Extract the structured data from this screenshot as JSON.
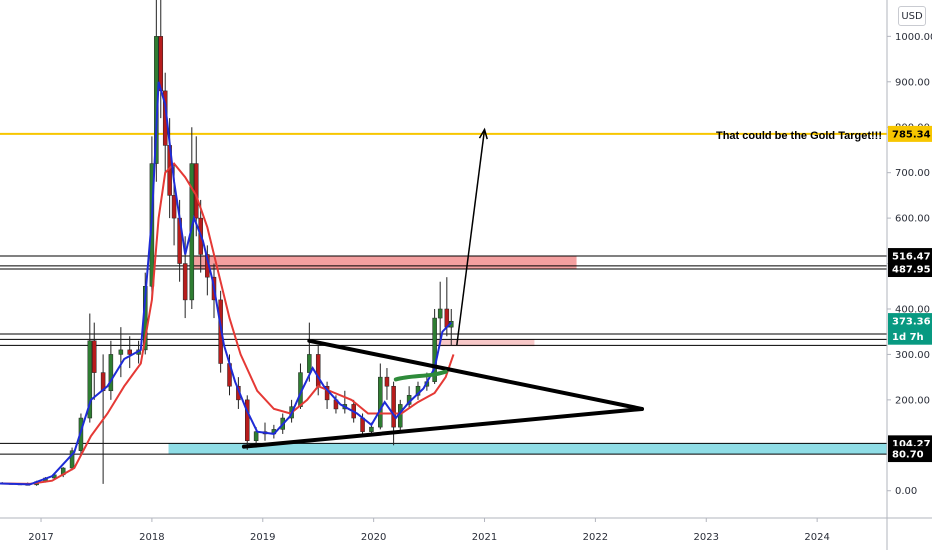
{
  "currency_button": "USD",
  "annotation": "That could be the Gold Target!!!",
  "chart_data": {
    "type": "candlestick",
    "ylim": [
      -60,
      1080
    ],
    "xlim": [
      2016.63,
      2024.63
    ],
    "y_ticks": [
      {
        "v": 0,
        "label": "0.00"
      },
      {
        "v": 200,
        "label": "200.00"
      },
      {
        "v": 300,
        "label": "300.00"
      },
      {
        "v": 400,
        "label": "400.00"
      },
      {
        "v": 500,
        "label": "500.00"
      },
      {
        "v": 600,
        "label": "600.00"
      },
      {
        "v": 700,
        "label": "700.00"
      },
      {
        "v": 800,
        "label": "800.00"
      },
      {
        "v": 900,
        "label": "900.00"
      },
      {
        "v": 1000,
        "label": "1000.00"
      }
    ],
    "x_ticks": [
      {
        "v": 2017,
        "label": "2017"
      },
      {
        "v": 2018,
        "label": "2018"
      },
      {
        "v": 2019,
        "label": "2019"
      },
      {
        "v": 2020,
        "label": "2020"
      },
      {
        "v": 2021,
        "label": "2021"
      },
      {
        "v": 2022,
        "label": "2022"
      },
      {
        "v": 2023,
        "label": "2023"
      },
      {
        "v": 2024,
        "label": "2024"
      }
    ],
    "price_tags": [
      {
        "v": 785.34,
        "label": "785.34",
        "bg": "#f7c600",
        "fg": "#000000"
      },
      {
        "v": 516.47,
        "label": "516.47",
        "bg": "#000000",
        "fg": "#ffffff"
      },
      {
        "v": 487.95,
        "label": "487.95",
        "bg": "#000000",
        "fg": "#ffffff"
      },
      {
        "v": 373.36,
        "label": "373.36",
        "bg": "#089981",
        "fg": "#ffffff"
      },
      {
        "v": 339,
        "label": "1d 7h",
        "bg": "#089981",
        "fg": "#ffffff"
      },
      {
        "v": 104.27,
        "label": "104.27",
        "bg": "#000000",
        "fg": "#ffffff"
      },
      {
        "v": 80.7,
        "label": "80.70",
        "bg": "#000000",
        "fg": "#ffffff"
      }
    ],
    "horizontal_levels": [
      {
        "v": 785.34,
        "color": "#f7c600",
        "width": 2
      },
      {
        "v": 516.47,
        "color": "#000000",
        "width": 1
      },
      {
        "v": 495,
        "color": "#000000",
        "width": 1
      },
      {
        "v": 487.95,
        "color": "#000000",
        "width": 1
      },
      {
        "v": 345,
        "color": "#000000",
        "width": 1
      },
      {
        "v": 333,
        "color": "#000000",
        "width": 1
      },
      {
        "v": 320,
        "color": "#000000",
        "width": 1
      },
      {
        "v": 104.27,
        "color": "#000000",
        "width": 1
      },
      {
        "v": 80.7,
        "color": "#000000",
        "width": 1
      }
    ],
    "zones": [
      {
        "x1": 2018.38,
        "x2": 2021.83,
        "y1": 487.95,
        "y2": 516.47,
        "color": "#f4a0a0"
      },
      {
        "x1": 2020.55,
        "x2": 2021.45,
        "y1": 318,
        "y2": 333,
        "color": "#f8c8c8"
      },
      {
        "x1": 2018.15,
        "x2": 2024.63,
        "y1": 80.7,
        "y2": 104.27,
        "color": "#8fdde6"
      }
    ],
    "trendlines": [
      {
        "x1": 2019.42,
        "y1": 330,
        "x2": 2022.42,
        "y2": 180,
        "color": "#000000",
        "width": 4
      },
      {
        "x1": 2018.83,
        "y1": 97,
        "x2": 2022.42,
        "y2": 180,
        "color": "#000000",
        "width": 4
      }
    ],
    "arrow": {
      "x1": 2020.75,
      "y1": 320,
      "x2": 2021.0,
      "y2": 795,
      "color": "#000000"
    },
    "green_arc": [
      [
        2020.2,
        245
      ],
      [
        2020.35,
        255
      ],
      [
        2020.5,
        250
      ],
      [
        2020.65,
        262
      ]
    ],
    "candles": [
      [
        2016.65,
        17,
        19,
        15,
        16
      ],
      [
        2016.73,
        16,
        17,
        14,
        15
      ],
      [
        2016.81,
        15,
        17,
        13,
        14
      ],
      [
        2016.88,
        14,
        18,
        12,
        13
      ],
      [
        2016.96,
        13,
        22,
        11,
        20
      ],
      [
        2017.04,
        20,
        30,
        18,
        28
      ],
      [
        2017.12,
        28,
        38,
        24,
        35
      ],
      [
        2017.2,
        35,
        52,
        30,
        50
      ],
      [
        2017.28,
        50,
        95,
        45,
        88
      ],
      [
        2017.36,
        88,
        170,
        80,
        160
      ],
      [
        2017.44,
        160,
        390,
        150,
        330
      ],
      [
        2017.48,
        330,
        370,
        200,
        260
      ],
      [
        2017.56,
        260,
        300,
        15,
        220
      ],
      [
        2017.63,
        220,
        330,
        200,
        300
      ],
      [
        2017.72,
        300,
        360,
        250,
        310
      ],
      [
        2017.8,
        310,
        340,
        270,
        300
      ],
      [
        2017.88,
        300,
        330,
        280,
        310
      ],
      [
        2017.94,
        310,
        480,
        300,
        450
      ],
      [
        2018.0,
        450,
        780,
        420,
        720
      ],
      [
        2018.04,
        720,
        1080,
        680,
        1000
      ],
      [
        2018.08,
        1000,
        1080,
        820,
        880
      ],
      [
        2018.12,
        880,
        920,
        700,
        760
      ],
      [
        2018.16,
        760,
        820,
        600,
        650
      ],
      [
        2018.2,
        650,
        720,
        540,
        600
      ],
      [
        2018.25,
        600,
        640,
        460,
        500
      ],
      [
        2018.3,
        500,
        560,
        380,
        420
      ],
      [
        2018.36,
        420,
        800,
        400,
        720
      ],
      [
        2018.4,
        720,
        780,
        560,
        600
      ],
      [
        2018.44,
        600,
        640,
        480,
        520
      ],
      [
        2018.5,
        520,
        540,
        430,
        470
      ],
      [
        2018.56,
        470,
        500,
        380,
        420
      ],
      [
        2018.62,
        420,
        440,
        260,
        280
      ],
      [
        2018.7,
        280,
        300,
        210,
        230
      ],
      [
        2018.78,
        230,
        250,
        180,
        200
      ],
      [
        2018.86,
        200,
        210,
        90,
        110
      ],
      [
        2018.94,
        110,
        140,
        95,
        130
      ],
      [
        2019.02,
        130,
        150,
        110,
        125
      ],
      [
        2019.1,
        125,
        145,
        115,
        135
      ],
      [
        2019.18,
        135,
        170,
        125,
        160
      ],
      [
        2019.26,
        160,
        200,
        150,
        185
      ],
      [
        2019.34,
        185,
        280,
        180,
        260
      ],
      [
        2019.42,
        260,
        370,
        240,
        300
      ],
      [
        2019.5,
        300,
        320,
        210,
        230
      ],
      [
        2019.58,
        230,
        240,
        180,
        200
      ],
      [
        2019.66,
        200,
        210,
        170,
        180
      ],
      [
        2019.74,
        180,
        220,
        170,
        190
      ],
      [
        2019.82,
        190,
        200,
        150,
        160
      ],
      [
        2019.9,
        160,
        170,
        120,
        130
      ],
      [
        2019.98,
        130,
        150,
        120,
        140
      ],
      [
        2020.06,
        140,
        280,
        135,
        250
      ],
      [
        2020.12,
        250,
        270,
        200,
        230
      ],
      [
        2020.18,
        230,
        240,
        100,
        140
      ],
      [
        2020.24,
        140,
        200,
        130,
        190
      ],
      [
        2020.32,
        190,
        230,
        180,
        210
      ],
      [
        2020.4,
        210,
        240,
        200,
        230
      ],
      [
        2020.48,
        230,
        260,
        220,
        240
      ],
      [
        2020.55,
        240,
        400,
        235,
        380
      ],
      [
        2020.6,
        380,
        460,
        330,
        400
      ],
      [
        2020.66,
        400,
        470,
        340,
        360
      ],
      [
        2020.7,
        360,
        400,
        320,
        373
      ]
    ],
    "ema_blue": [
      [
        2016.63,
        16
      ],
      [
        2016.9,
        14
      ],
      [
        2017.1,
        32
      ],
      [
        2017.3,
        85
      ],
      [
        2017.45,
        200
      ],
      [
        2017.6,
        230
      ],
      [
        2017.75,
        290
      ],
      [
        2017.9,
        310
      ],
      [
        2018.0,
        600
      ],
      [
        2018.06,
        900
      ],
      [
        2018.12,
        850
      ],
      [
        2018.2,
        680
      ],
      [
        2018.3,
        520
      ],
      [
        2018.38,
        600
      ],
      [
        2018.46,
        550
      ],
      [
        2018.55,
        460
      ],
      [
        2018.65,
        320
      ],
      [
        2018.75,
        240
      ],
      [
        2018.85,
        180
      ],
      [
        2018.95,
        130
      ],
      [
        2019.1,
        125
      ],
      [
        2019.25,
        165
      ],
      [
        2019.35,
        220
      ],
      [
        2019.45,
        270
      ],
      [
        2019.55,
        230
      ],
      [
        2019.7,
        190
      ],
      [
        2019.85,
        170
      ],
      [
        2019.98,
        145
      ],
      [
        2020.1,
        195
      ],
      [
        2020.2,
        160
      ],
      [
        2020.32,
        195
      ],
      [
        2020.45,
        225
      ],
      [
        2020.55,
        270
      ],
      [
        2020.62,
        350
      ],
      [
        2020.7,
        370
      ]
    ],
    "ema_red": [
      [
        2016.63,
        16
      ],
      [
        2016.9,
        15
      ],
      [
        2017.1,
        22
      ],
      [
        2017.3,
        50
      ],
      [
        2017.45,
        120
      ],
      [
        2017.6,
        170
      ],
      [
        2017.75,
        230
      ],
      [
        2017.9,
        280
      ],
      [
        2018.0,
        420
      ],
      [
        2018.06,
        600
      ],
      [
        2018.12,
        700
      ],
      [
        2018.2,
        720
      ],
      [
        2018.3,
        690
      ],
      [
        2018.4,
        650
      ],
      [
        2018.5,
        580
      ],
      [
        2018.6,
        480
      ],
      [
        2018.7,
        380
      ],
      [
        2018.8,
        300
      ],
      [
        2018.95,
        220
      ],
      [
        2019.1,
        180
      ],
      [
        2019.25,
        170
      ],
      [
        2019.4,
        200
      ],
      [
        2019.5,
        230
      ],
      [
        2019.65,
        215
      ],
      [
        2019.8,
        200
      ],
      [
        2019.95,
        170
      ],
      [
        2020.1,
        170
      ],
      [
        2020.25,
        170
      ],
      [
        2020.4,
        195
      ],
      [
        2020.55,
        215
      ],
      [
        2020.65,
        250
      ],
      [
        2020.72,
        300
      ]
    ]
  }
}
